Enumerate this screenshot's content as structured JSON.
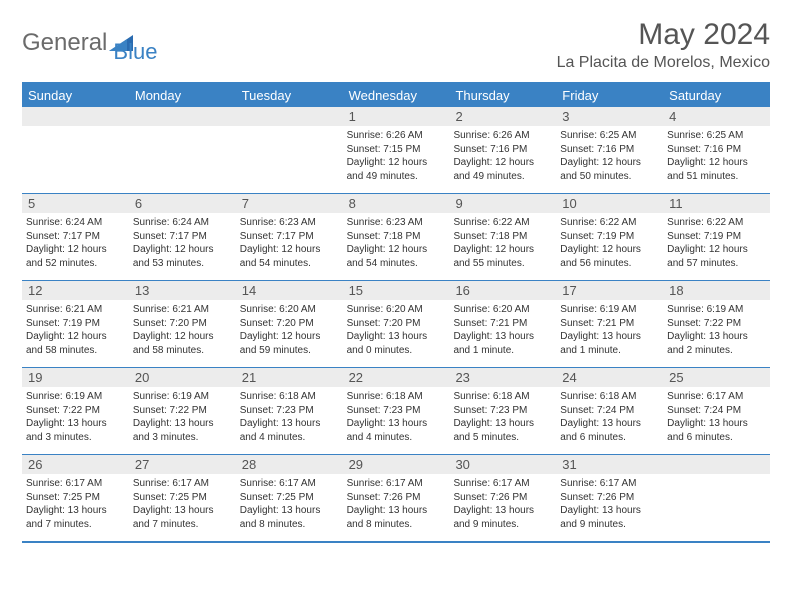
{
  "brand": {
    "part1": "General",
    "part2": "Blue"
  },
  "title": "May 2024",
  "location": "La Placita de Morelos, Mexico",
  "header_bg": "#3a82c4",
  "weekdays": [
    "Sunday",
    "Monday",
    "Tuesday",
    "Wednesday",
    "Thursday",
    "Friday",
    "Saturday"
  ],
  "weeks": [
    [
      {
        "num": "",
        "sunrise": "",
        "sunset": "",
        "daylight": ""
      },
      {
        "num": "",
        "sunrise": "",
        "sunset": "",
        "daylight": ""
      },
      {
        "num": "",
        "sunrise": "",
        "sunset": "",
        "daylight": ""
      },
      {
        "num": "1",
        "sunrise": "Sunrise: 6:26 AM",
        "sunset": "Sunset: 7:15 PM",
        "daylight": "Daylight: 12 hours and 49 minutes."
      },
      {
        "num": "2",
        "sunrise": "Sunrise: 6:26 AM",
        "sunset": "Sunset: 7:16 PM",
        "daylight": "Daylight: 12 hours and 49 minutes."
      },
      {
        "num": "3",
        "sunrise": "Sunrise: 6:25 AM",
        "sunset": "Sunset: 7:16 PM",
        "daylight": "Daylight: 12 hours and 50 minutes."
      },
      {
        "num": "4",
        "sunrise": "Sunrise: 6:25 AM",
        "sunset": "Sunset: 7:16 PM",
        "daylight": "Daylight: 12 hours and 51 minutes."
      }
    ],
    [
      {
        "num": "5",
        "sunrise": "Sunrise: 6:24 AM",
        "sunset": "Sunset: 7:17 PM",
        "daylight": "Daylight: 12 hours and 52 minutes."
      },
      {
        "num": "6",
        "sunrise": "Sunrise: 6:24 AM",
        "sunset": "Sunset: 7:17 PM",
        "daylight": "Daylight: 12 hours and 53 minutes."
      },
      {
        "num": "7",
        "sunrise": "Sunrise: 6:23 AM",
        "sunset": "Sunset: 7:17 PM",
        "daylight": "Daylight: 12 hours and 54 minutes."
      },
      {
        "num": "8",
        "sunrise": "Sunrise: 6:23 AM",
        "sunset": "Sunset: 7:18 PM",
        "daylight": "Daylight: 12 hours and 54 minutes."
      },
      {
        "num": "9",
        "sunrise": "Sunrise: 6:22 AM",
        "sunset": "Sunset: 7:18 PM",
        "daylight": "Daylight: 12 hours and 55 minutes."
      },
      {
        "num": "10",
        "sunrise": "Sunrise: 6:22 AM",
        "sunset": "Sunset: 7:19 PM",
        "daylight": "Daylight: 12 hours and 56 minutes."
      },
      {
        "num": "11",
        "sunrise": "Sunrise: 6:22 AM",
        "sunset": "Sunset: 7:19 PM",
        "daylight": "Daylight: 12 hours and 57 minutes."
      }
    ],
    [
      {
        "num": "12",
        "sunrise": "Sunrise: 6:21 AM",
        "sunset": "Sunset: 7:19 PM",
        "daylight": "Daylight: 12 hours and 58 minutes."
      },
      {
        "num": "13",
        "sunrise": "Sunrise: 6:21 AM",
        "sunset": "Sunset: 7:20 PM",
        "daylight": "Daylight: 12 hours and 58 minutes."
      },
      {
        "num": "14",
        "sunrise": "Sunrise: 6:20 AM",
        "sunset": "Sunset: 7:20 PM",
        "daylight": "Daylight: 12 hours and 59 minutes."
      },
      {
        "num": "15",
        "sunrise": "Sunrise: 6:20 AM",
        "sunset": "Sunset: 7:20 PM",
        "daylight": "Daylight: 13 hours and 0 minutes."
      },
      {
        "num": "16",
        "sunrise": "Sunrise: 6:20 AM",
        "sunset": "Sunset: 7:21 PM",
        "daylight": "Daylight: 13 hours and 1 minute."
      },
      {
        "num": "17",
        "sunrise": "Sunrise: 6:19 AM",
        "sunset": "Sunset: 7:21 PM",
        "daylight": "Daylight: 13 hours and 1 minute."
      },
      {
        "num": "18",
        "sunrise": "Sunrise: 6:19 AM",
        "sunset": "Sunset: 7:22 PM",
        "daylight": "Daylight: 13 hours and 2 minutes."
      }
    ],
    [
      {
        "num": "19",
        "sunrise": "Sunrise: 6:19 AM",
        "sunset": "Sunset: 7:22 PM",
        "daylight": "Daylight: 13 hours and 3 minutes."
      },
      {
        "num": "20",
        "sunrise": "Sunrise: 6:19 AM",
        "sunset": "Sunset: 7:22 PM",
        "daylight": "Daylight: 13 hours and 3 minutes."
      },
      {
        "num": "21",
        "sunrise": "Sunrise: 6:18 AM",
        "sunset": "Sunset: 7:23 PM",
        "daylight": "Daylight: 13 hours and 4 minutes."
      },
      {
        "num": "22",
        "sunrise": "Sunrise: 6:18 AM",
        "sunset": "Sunset: 7:23 PM",
        "daylight": "Daylight: 13 hours and 4 minutes."
      },
      {
        "num": "23",
        "sunrise": "Sunrise: 6:18 AM",
        "sunset": "Sunset: 7:23 PM",
        "daylight": "Daylight: 13 hours and 5 minutes."
      },
      {
        "num": "24",
        "sunrise": "Sunrise: 6:18 AM",
        "sunset": "Sunset: 7:24 PM",
        "daylight": "Daylight: 13 hours and 6 minutes."
      },
      {
        "num": "25",
        "sunrise": "Sunrise: 6:17 AM",
        "sunset": "Sunset: 7:24 PM",
        "daylight": "Daylight: 13 hours and 6 minutes."
      }
    ],
    [
      {
        "num": "26",
        "sunrise": "Sunrise: 6:17 AM",
        "sunset": "Sunset: 7:25 PM",
        "daylight": "Daylight: 13 hours and 7 minutes."
      },
      {
        "num": "27",
        "sunrise": "Sunrise: 6:17 AM",
        "sunset": "Sunset: 7:25 PM",
        "daylight": "Daylight: 13 hours and 7 minutes."
      },
      {
        "num": "28",
        "sunrise": "Sunrise: 6:17 AM",
        "sunset": "Sunset: 7:25 PM",
        "daylight": "Daylight: 13 hours and 8 minutes."
      },
      {
        "num": "29",
        "sunrise": "Sunrise: 6:17 AM",
        "sunset": "Sunset: 7:26 PM",
        "daylight": "Daylight: 13 hours and 8 minutes."
      },
      {
        "num": "30",
        "sunrise": "Sunrise: 6:17 AM",
        "sunset": "Sunset: 7:26 PM",
        "daylight": "Daylight: 13 hours and 9 minutes."
      },
      {
        "num": "31",
        "sunrise": "Sunrise: 6:17 AM",
        "sunset": "Sunset: 7:26 PM",
        "daylight": "Daylight: 13 hours and 9 minutes."
      },
      {
        "num": "",
        "sunrise": "",
        "sunset": "",
        "daylight": ""
      }
    ]
  ]
}
